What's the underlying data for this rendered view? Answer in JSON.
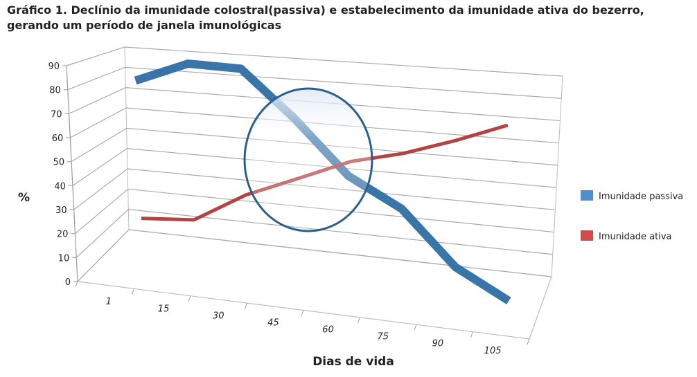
{
  "chart_data": {
    "type": "line",
    "title": "Gráfico 1. Declínio da imunidade colostral(passiva) e estabelecimento da imunidade ativa do bezerro, gerando um período de janela imunológicas",
    "xlabel": "Dias de vida",
    "ylabel": "%",
    "categories": [
      "1",
      "15",
      "30",
      "45",
      "60",
      "75",
      "90",
      "105"
    ],
    "y_ticks": [
      "0",
      "10",
      "20",
      "30",
      "40",
      "50",
      "60",
      "70",
      "80",
      "90"
    ],
    "ylim": [
      0,
      90
    ],
    "grid": true,
    "legend_position": "right",
    "series": [
      {
        "name": "Imunidade passiva",
        "color": "#2e6ea3",
        "legend_color": "#4f8fd0",
        "values": [
          80,
          90,
          90,
          70,
          47,
          35,
          12,
          0
        ]
      },
      {
        "name": "Imunidade ativa",
        "color": "#b03a3a",
        "legend_color": "#d24b4b",
        "values": [
          16,
          18,
          32,
          42,
          52,
          58,
          66,
          75
        ]
      }
    ]
  }
}
